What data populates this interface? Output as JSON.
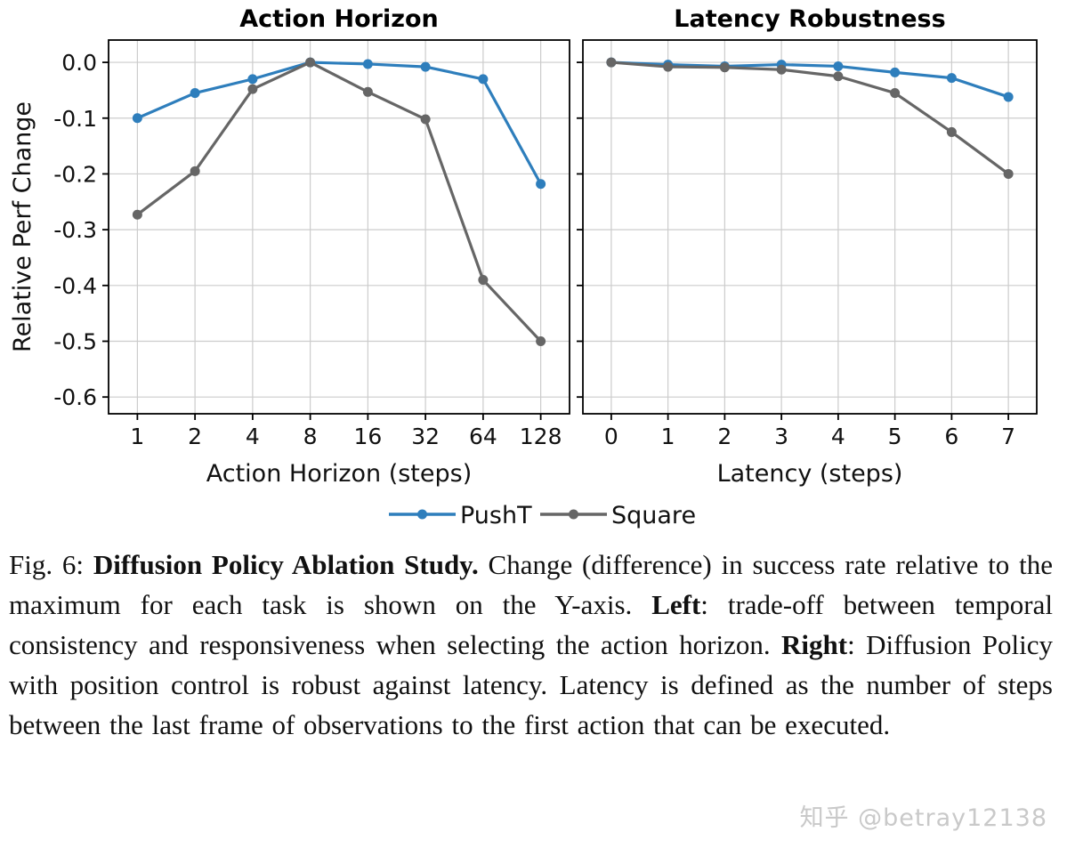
{
  "watermark": "知乎 @betray12138",
  "legend": {
    "items": [
      {
        "label": "PushT",
        "color": "#2e7ebc"
      },
      {
        "label": "Square",
        "color": "#666666"
      }
    ]
  },
  "caption": {
    "fig_label": "Fig. 6: ",
    "title": "Diffusion Policy Ablation Study.",
    "seg1": " Change (difference) in success rate relative to the maximum for each task is shown on the Y-axis. ",
    "left_label": "Left",
    "seg2": ": trade-off between temporal consistency and responsiveness when selecting the action horizon. ",
    "right_label": "Right",
    "seg3": ": Diffusion Policy with position control is robust against latency. Latency is defined as the number of steps between the last frame of observations to the first action that can be executed."
  },
  "chart_data": [
    {
      "type": "line",
      "title": "Action Horizon",
      "xlabel": "Action Horizon (steps)",
      "ylabel": "Relative Perf Change",
      "categories": [
        "1",
        "2",
        "4",
        "8",
        "16",
        "32",
        "64",
        "128"
      ],
      "yticks": [
        0.0,
        -0.1,
        -0.2,
        -0.3,
        -0.4,
        -0.5,
        -0.6
      ],
      "ylim": [
        -0.63,
        0.04
      ],
      "grid": true,
      "series": [
        {
          "name": "PushT",
          "color": "#2e7ebc",
          "values": [
            -0.1,
            -0.055,
            -0.03,
            0.0,
            -0.003,
            -0.008,
            -0.03,
            -0.218
          ]
        },
        {
          "name": "Square",
          "color": "#666666",
          "values": [
            -0.273,
            -0.195,
            -0.048,
            0.0,
            -0.053,
            -0.102,
            -0.39,
            -0.5
          ]
        }
      ]
    },
    {
      "type": "line",
      "title": "Latency Robustness",
      "xlabel": "Latency (steps)",
      "ylabel": "",
      "categories": [
        "0",
        "1",
        "2",
        "3",
        "4",
        "5",
        "6",
        "7"
      ],
      "yticks": [
        0.0,
        -0.1,
        -0.2,
        -0.3,
        -0.4,
        -0.5,
        -0.6
      ],
      "ylim": [
        -0.63,
        0.04
      ],
      "grid": true,
      "series": [
        {
          "name": "PushT",
          "color": "#2e7ebc",
          "values": [
            0.0,
            -0.004,
            -0.007,
            -0.004,
            -0.007,
            -0.018,
            -0.028,
            -0.062
          ]
        },
        {
          "name": "Square",
          "color": "#666666",
          "values": [
            0.0,
            -0.008,
            -0.009,
            -0.013,
            -0.025,
            -0.055,
            -0.125,
            -0.2
          ]
        }
      ]
    }
  ]
}
